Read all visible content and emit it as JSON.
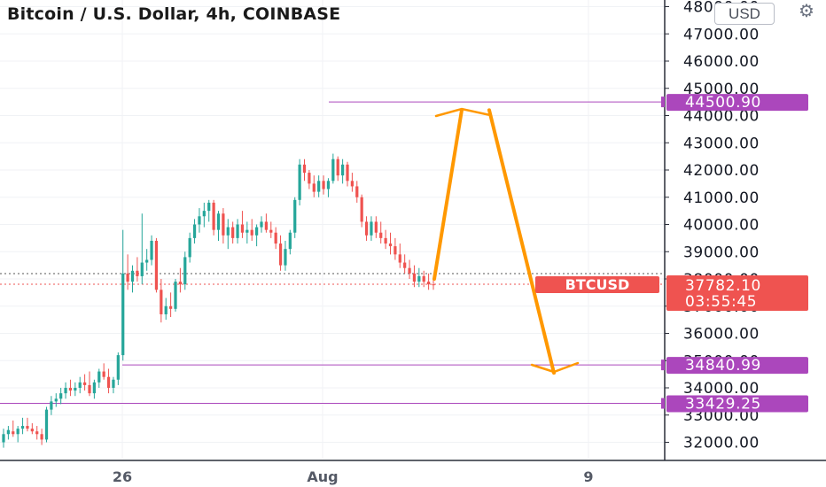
{
  "header": {
    "title": "Bitcoin / U.S. Dollar, 4h, COINBASE",
    "currency_button": "USD"
  },
  "chart_data": {
    "type": "candlestick",
    "title": "Bitcoin / U.S. Dollar, 4h, COINBASE",
    "ylim": [
      31400,
      48100
    ],
    "y_ticks": [
      "32000.00",
      "33000.00",
      "34000.00",
      "35000.00",
      "36000.00",
      "37000.00",
      "38000.00",
      "39000.00",
      "40000.00",
      "41000.00",
      "42000.00",
      "43000.00",
      "44000.00",
      "45000.00",
      "46000.00",
      "47000.00",
      "48000.00"
    ],
    "x_ticks": [
      "26",
      "Aug",
      "9"
    ],
    "grid": true,
    "colors": {
      "up": "#26a69a",
      "down": "#ef5350",
      "level": "#ab47bc",
      "projection": "#ff9800",
      "price": "#ef5350"
    },
    "symbol_label": "BTCUSD",
    "last_price": "37782.10",
    "countdown": "03:55:45",
    "levels": [
      {
        "label": "44500.90",
        "value": 44500.9
      },
      {
        "label": "34840.99",
        "value": 34840.99
      },
      {
        "label": "33429.25",
        "value": 33429.25
      }
    ],
    "projection_path": [
      38000,
      44200,
      34550
    ],
    "candles": [
      [
        32000,
        32500,
        31800,
        32300
      ],
      [
        32300,
        32600,
        32100,
        32450
      ],
      [
        32400,
        32800,
        32200,
        32300
      ],
      [
        32300,
        32600,
        32000,
        32500
      ],
      [
        32500,
        32900,
        32300,
        32600
      ],
      [
        32600,
        32900,
        32400,
        32500
      ],
      [
        32500,
        32700,
        32300,
        32400
      ],
      [
        32400,
        32600,
        32100,
        32300
      ],
      [
        32300,
        32500,
        31900,
        32100
      ],
      [
        32100,
        33300,
        32000,
        33200
      ],
      [
        33200,
        33700,
        33000,
        33500
      ],
      [
        33500,
        33800,
        33300,
        33600
      ],
      [
        33600,
        34000,
        33400,
        33800
      ],
      [
        33800,
        34200,
        33600,
        34000
      ],
      [
        34000,
        34300,
        33700,
        33900
      ],
      [
        33900,
        34200,
        33700,
        34000
      ],
      [
        34000,
        34400,
        33800,
        34200
      ],
      [
        34200,
        34500,
        33900,
        34100
      ],
      [
        34100,
        34600,
        33700,
        33800
      ],
      [
        33800,
        34300,
        33600,
        34200
      ],
      [
        34200,
        34700,
        34000,
        34600
      ],
      [
        34600,
        34900,
        34300,
        34400
      ],
      [
        34400,
        34700,
        33800,
        34000
      ],
      [
        34000,
        34400,
        33800,
        34300
      ],
      [
        34300,
        35300,
        34100,
        35200
      ],
      [
        35200,
        39800,
        35000,
        38200
      ],
      [
        38200,
        38900,
        37600,
        37900
      ],
      [
        37900,
        38500,
        37500,
        38300
      ],
      [
        38300,
        38800,
        37900,
        38100
      ],
      [
        38100,
        40400,
        37800,
        38600
      ],
      [
        38600,
        39100,
        38300,
        38700
      ],
      [
        38700,
        39600,
        38500,
        39400
      ],
      [
        39400,
        39500,
        37500,
        37600
      ],
      [
        37600,
        38000,
        36400,
        36700
      ],
      [
        36700,
        37300,
        36500,
        37000
      ],
      [
        37000,
        37500,
        36600,
        36900
      ],
      [
        36900,
        38000,
        36800,
        37900
      ],
      [
        37900,
        38400,
        37500,
        37800
      ],
      [
        37800,
        39000,
        37600,
        38800
      ],
      [
        38800,
        39700,
        38600,
        39500
      ],
      [
        39500,
        40200,
        39300,
        40000
      ],
      [
        40000,
        40600,
        39700,
        40300
      ],
      [
        40300,
        40800,
        39900,
        40500
      ],
      [
        40500,
        40900,
        40100,
        40800
      ],
      [
        40800,
        40900,
        39600,
        39800
      ],
      [
        39800,
        40500,
        39400,
        40400
      ],
      [
        40400,
        40600,
        39300,
        39600
      ],
      [
        39600,
        40200,
        39100,
        39900
      ],
      [
        39900,
        40100,
        39300,
        39500
      ],
      [
        39500,
        40200,
        39300,
        40000
      ],
      [
        40000,
        40500,
        39500,
        39700
      ],
      [
        39700,
        40100,
        39300,
        39800
      ],
      [
        39800,
        40200,
        39400,
        39600
      ],
      [
        39600,
        40000,
        39200,
        39900
      ],
      [
        39900,
        40300,
        39700,
        40100
      ],
      [
        40100,
        40400,
        39700,
        39800
      ],
      [
        39800,
        40100,
        39500,
        39700
      ],
      [
        39700,
        39900,
        39100,
        39300
      ],
      [
        39300,
        39600,
        38300,
        38500
      ],
      [
        38500,
        39400,
        38300,
        39100
      ],
      [
        39100,
        39800,
        38900,
        39700
      ],
      [
        39700,
        41000,
        39500,
        40900
      ],
      [
        40900,
        42400,
        40700,
        42200
      ],
      [
        42200,
        42400,
        41600,
        41900
      ],
      [
        41900,
        42000,
        41300,
        41500
      ],
      [
        41500,
        41800,
        41000,
        41200
      ],
      [
        41200,
        41800,
        41000,
        41600
      ],
      [
        41600,
        41800,
        41100,
        41300
      ],
      [
        41300,
        41700,
        41000,
        41600
      ],
      [
        41600,
        42600,
        41500,
        42400
      ],
      [
        42400,
        42500,
        41600,
        41800
      ],
      [
        41800,
        42400,
        41500,
        42200
      ],
      [
        42200,
        42300,
        41400,
        41600
      ],
      [
        41600,
        41900,
        41200,
        41400
      ],
      [
        41400,
        41600,
        40800,
        41000
      ],
      [
        41000,
        41100,
        39900,
        40100
      ],
      [
        40100,
        40300,
        39400,
        39600
      ],
      [
        39600,
        40300,
        39400,
        40100
      ],
      [
        40100,
        40300,
        39500,
        39700
      ],
      [
        39700,
        40100,
        39300,
        39500
      ],
      [
        39500,
        39800,
        39100,
        39300
      ],
      [
        39300,
        39700,
        38900,
        39200
      ],
      [
        39200,
        39500,
        38700,
        38900
      ],
      [
        38900,
        39300,
        38400,
        38600
      ],
      [
        38600,
        38900,
        38200,
        38400
      ],
      [
        38400,
        38700,
        38000,
        38200
      ],
      [
        38200,
        38500,
        37700,
        37900
      ],
      [
        37900,
        38400,
        37700,
        38100
      ],
      [
        38100,
        38300,
        37700,
        37900
      ],
      [
        37900,
        38200,
        37600,
        37800
      ],
      [
        37800,
        38100,
        37600,
        37782
      ]
    ]
  }
}
